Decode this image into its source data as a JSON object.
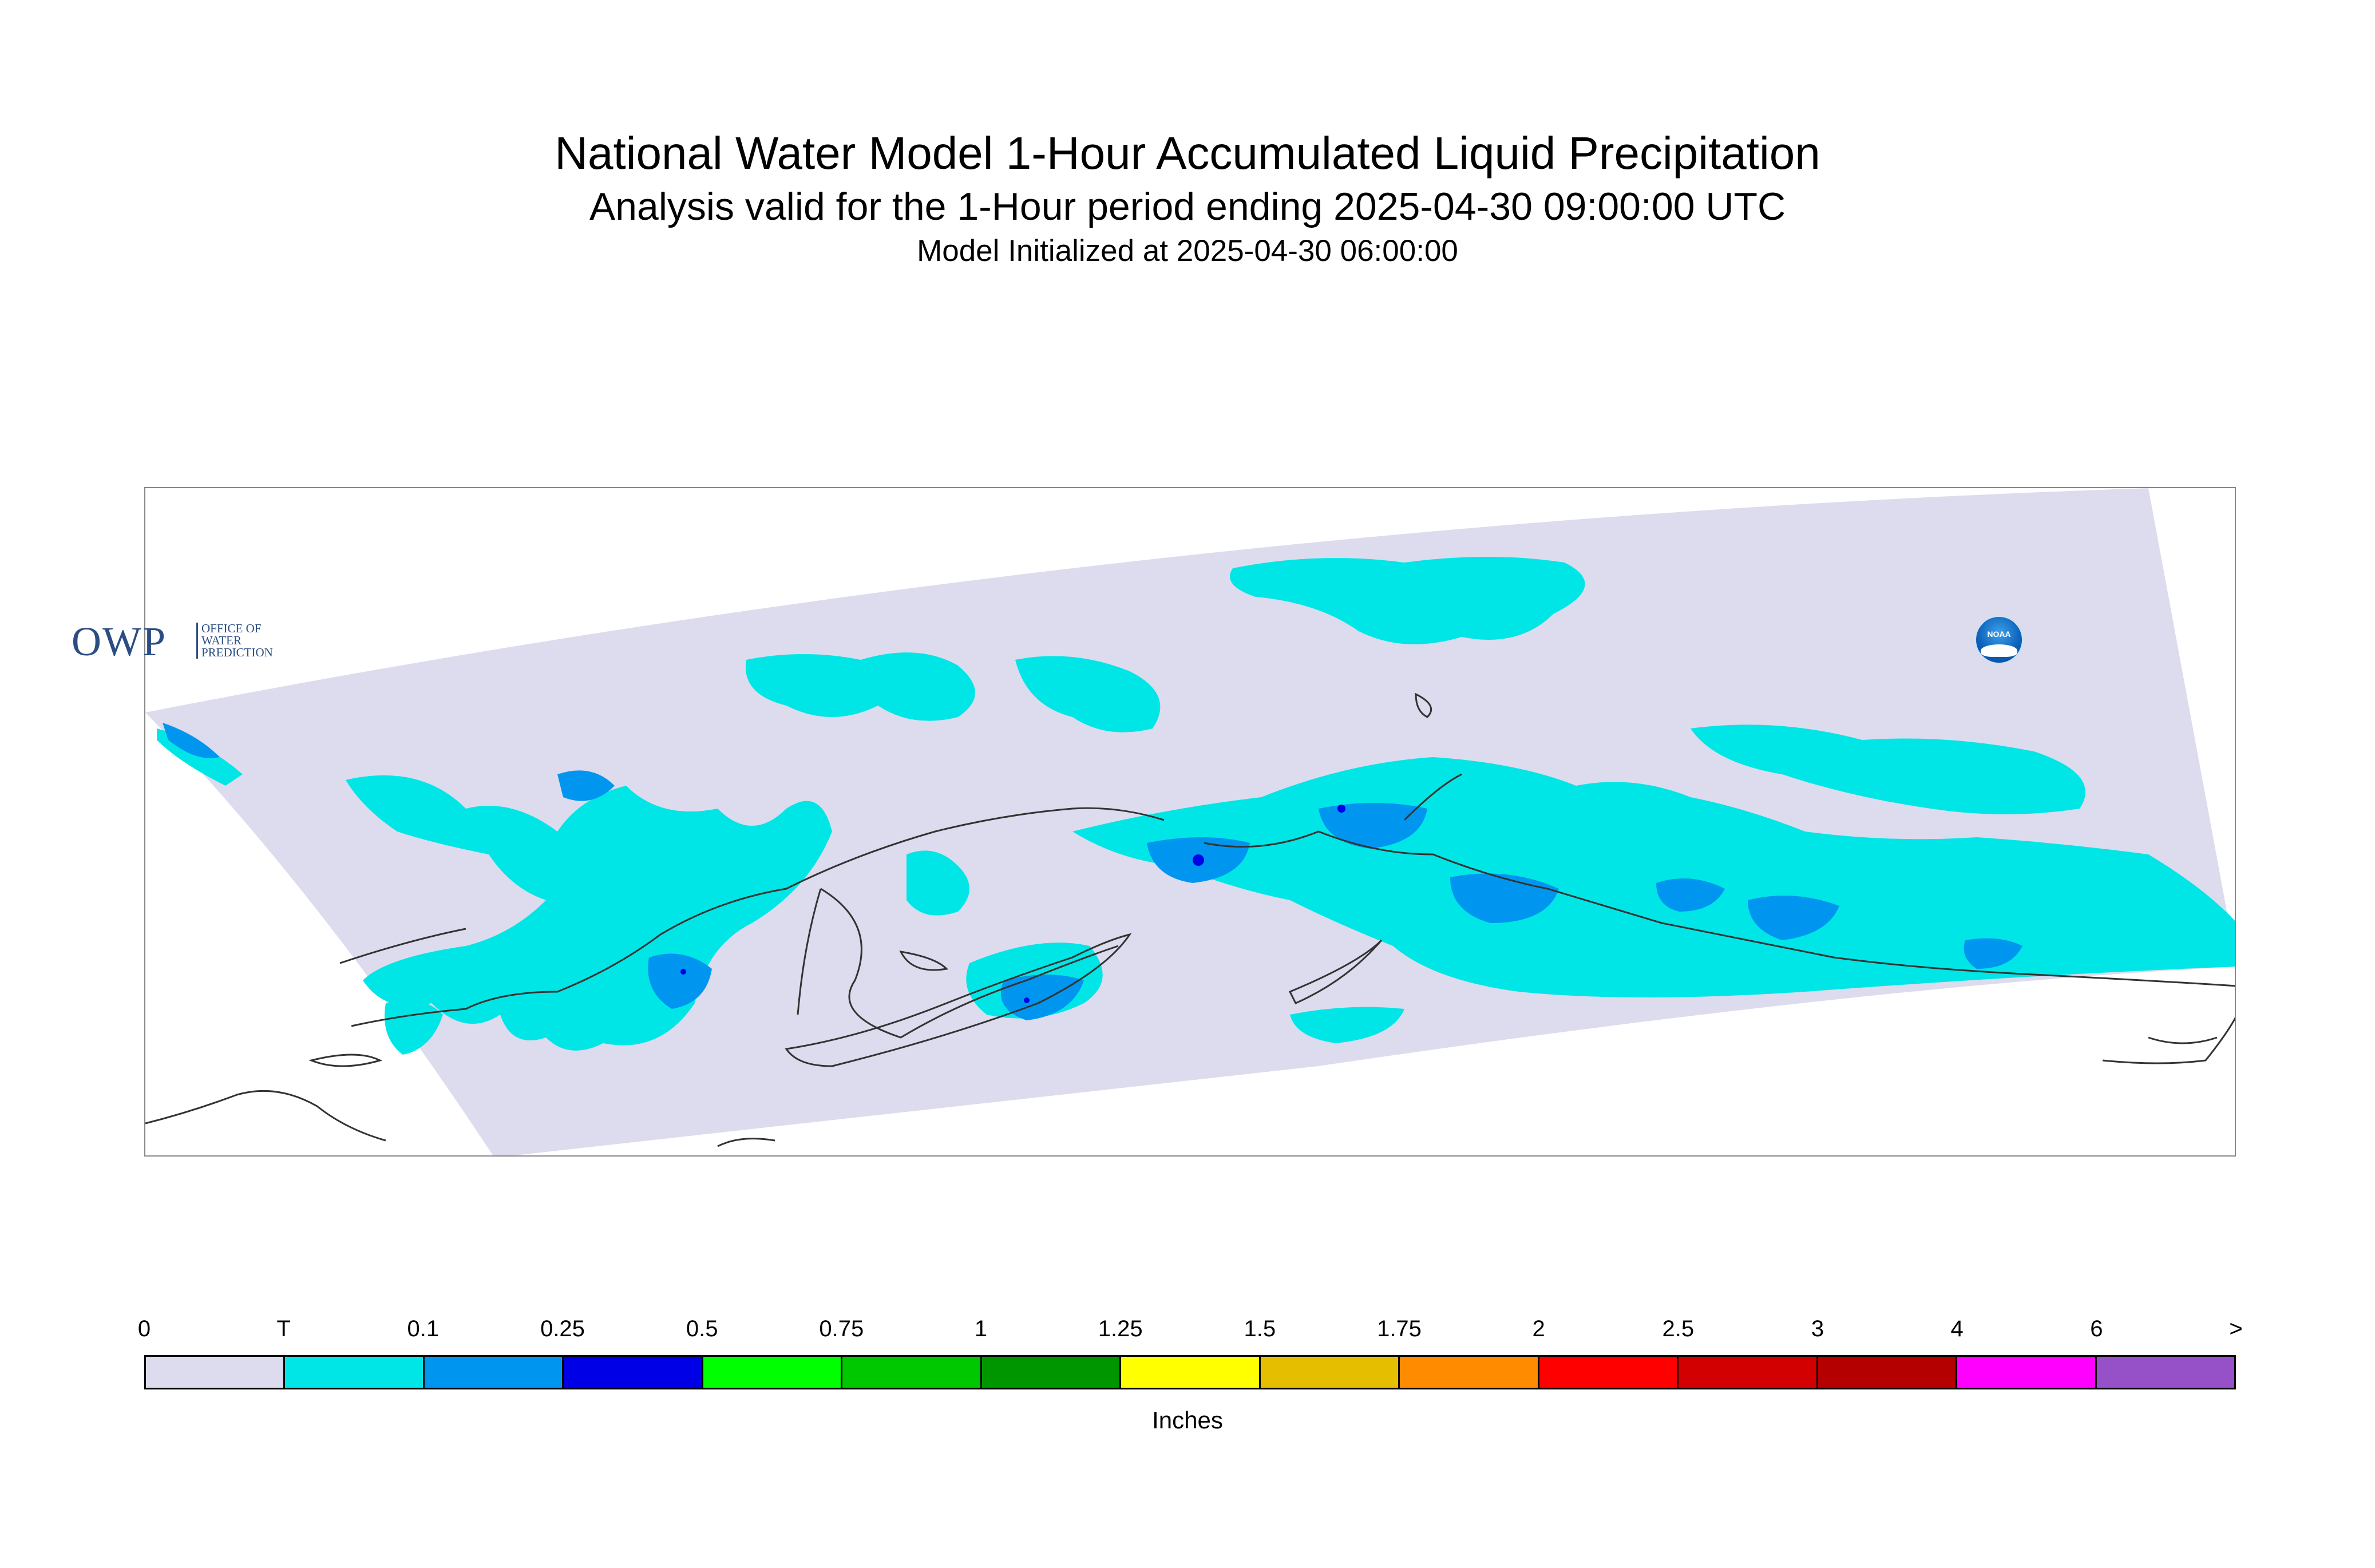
{
  "title": "National Water Model 1-Hour Accumulated Liquid Precipitation",
  "subtitle": "Analysis valid for the 1-Hour period ending 2025-04-30 09:00:00 UTC",
  "init_line": "Model Initialized at 2025-04-30 06:00:00",
  "logos": {
    "owp_mark": "OWP",
    "owp_lines": [
      "OFFICE OF",
      "WATER",
      "PREDICTION"
    ],
    "noaa_text": "NOAA"
  },
  "colors": {
    "zero": "#dcdcee",
    "trace": "#00e6e6",
    "light": "#0096f0",
    "heavy": "#0000e6",
    "coast": "#333333"
  },
  "legend": {
    "units": "Inches",
    "ticks": [
      "0",
      "T",
      "0.1",
      "0.25",
      "0.5",
      "0.75",
      "1",
      "1.25",
      "1.5",
      "1.75",
      "2",
      "2.5",
      "3",
      "4",
      "6",
      ">"
    ],
    "colors": [
      "#dcdcee",
      "#00e6e6",
      "#0096f0",
      "#0000e6",
      "#00ff00",
      "#00c800",
      "#009600",
      "#ffff00",
      "#e6be00",
      "#ff8c00",
      "#ff0000",
      "#d20000",
      "#b40000",
      "#ff00ff",
      "#9650c8"
    ]
  }
}
